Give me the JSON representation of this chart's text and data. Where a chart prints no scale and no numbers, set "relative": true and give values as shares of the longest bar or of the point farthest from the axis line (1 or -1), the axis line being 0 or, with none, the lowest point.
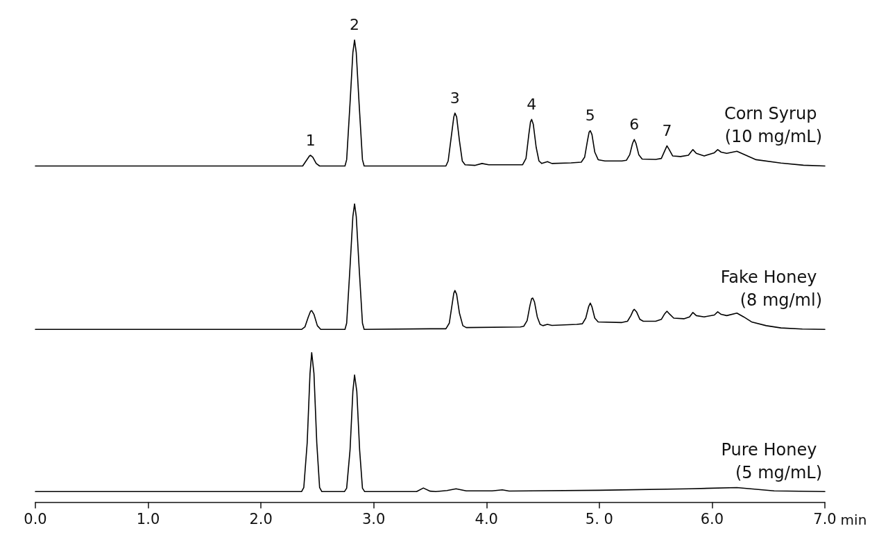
{
  "chart_data": [
    {
      "type": "line",
      "relative": true,
      "x": [
        0,
        2.3,
        2.37,
        2.4,
        2.43,
        2.44,
        2.46,
        2.49,
        2.52,
        2.745,
        2.76,
        2.79,
        2.815,
        2.83,
        2.845,
        2.87,
        2.9,
        2.915,
        3.5,
        3.64,
        3.66,
        3.69,
        3.71,
        3.72,
        3.735,
        3.76,
        3.785,
        3.81,
        3.9,
        3.96,
        4.02,
        4.32,
        4.35,
        4.375,
        4.39,
        4.4,
        4.415,
        4.44,
        4.465,
        4.49,
        4.54,
        4.58,
        4.75,
        4.84,
        4.87,
        4.895,
        4.91,
        4.92,
        4.935,
        4.96,
        4.99,
        5.05,
        5.2,
        5.24,
        5.27,
        5.295,
        5.31,
        5.325,
        5.35,
        5.38,
        5.5,
        5.55,
        5.58,
        5.6,
        5.62,
        5.65,
        5.72,
        5.79,
        5.82,
        5.83,
        5.86,
        5.93,
        6.02,
        6.05,
        6.08,
        6.13,
        6.22,
        6.3,
        6.39,
        6.61,
        6.81,
        7.0
      ],
      "series": [
        {
          "name": "Corn Syrup (10 mg/mL)",
          "color": "#000000",
          "values": [
            0,
            0,
            0,
            0.04,
            0.08,
            0.085,
            0.07,
            0.02,
            0,
            0,
            0.05,
            0.5,
            0.9,
            1,
            0.9,
            0.5,
            0.05,
            0,
            0,
            0,
            0.04,
            0.25,
            0.39,
            0.42,
            0.39,
            0.2,
            0.04,
            0.01,
            0.005,
            0.02,
            0.01,
            0.01,
            0.06,
            0.25,
            0.35,
            0.37,
            0.33,
            0.15,
            0.04,
            0.02,
            0.035,
            0.02,
            0.025,
            0.03,
            0.07,
            0.2,
            0.27,
            0.28,
            0.25,
            0.11,
            0.05,
            0.04,
            0.04,
            0.045,
            0.09,
            0.18,
            0.21,
            0.18,
            0.09,
            0.055,
            0.052,
            0.06,
            0.12,
            0.16,
            0.13,
            0.08,
            0.075,
            0.085,
            0.12,
            0.13,
            0.1,
            0.08,
            0.105,
            0.13,
            0.11,
            0.1,
            0.117,
            0.085,
            0.05,
            0.023,
            0.006,
            0
          ]
        }
      ],
      "xlim": [
        0,
        7
      ],
      "tick_labels": false,
      "annotations": [
        {
          "text": "1",
          "x": 2.44,
          "y": 0.085
        },
        {
          "text": "2",
          "x": 2.83,
          "y": 1
        },
        {
          "text": "3",
          "x": 3.72,
          "y": 0.42
        },
        {
          "text": "4",
          "x": 4.4,
          "y": 0.37
        },
        {
          "text": "5",
          "x": 4.92,
          "y": 0.28
        },
        {
          "text": "6",
          "x": 5.31,
          "y": 0.21
        },
        {
          "text": "7",
          "x": 5.6,
          "y": 0.16
        }
      ]
    },
    {
      "type": "line",
      "relative": true,
      "x": [
        0,
        2.36,
        2.39,
        2.42,
        2.44,
        2.45,
        2.47,
        2.5,
        2.53,
        2.745,
        2.76,
        2.79,
        2.815,
        2.83,
        2.845,
        2.87,
        2.9,
        2.915,
        3.5,
        3.64,
        3.67,
        3.695,
        3.71,
        3.72,
        3.735,
        3.76,
        3.79,
        3.82,
        4.3,
        4.33,
        4.36,
        4.385,
        4.4,
        4.41,
        4.425,
        4.45,
        4.475,
        4.5,
        4.54,
        4.58,
        4.8,
        4.85,
        4.88,
        4.905,
        4.92,
        4.935,
        4.96,
        4.99,
        5.2,
        5.25,
        5.28,
        5.3,
        5.31,
        5.33,
        5.36,
        5.39,
        5.5,
        5.55,
        5.58,
        5.6,
        5.62,
        5.66,
        5.75,
        5.8,
        5.83,
        5.86,
        5.93,
        6.02,
        6.05,
        6.08,
        6.13,
        6.22,
        6.28,
        6.35,
        6.48,
        6.61,
        6.8,
        7.0
      ],
      "series": [
        {
          "name": "Fake Honey (8 mg/ml)",
          "color": "#000000",
          "values": [
            0,
            0,
            0.02,
            0.1,
            0.145,
            0.15,
            0.12,
            0.03,
            0,
            0,
            0.05,
            0.5,
            0.9,
            1,
            0.9,
            0.5,
            0.05,
            0,
            0.005,
            0.005,
            0.05,
            0.2,
            0.29,
            0.31,
            0.28,
            0.13,
            0.03,
            0.015,
            0.02,
            0.025,
            0.07,
            0.19,
            0.245,
            0.25,
            0.22,
            0.1,
            0.04,
            0.03,
            0.04,
            0.032,
            0.04,
            0.045,
            0.09,
            0.18,
            0.21,
            0.18,
            0.09,
            0.06,
            0.055,
            0.065,
            0.11,
            0.15,
            0.16,
            0.14,
            0.08,
            0.065,
            0.065,
            0.08,
            0.125,
            0.145,
            0.125,
            0.09,
            0.085,
            0.1,
            0.135,
            0.11,
            0.1,
            0.115,
            0.14,
            0.12,
            0.11,
            0.13,
            0.1,
            0.06,
            0.03,
            0.012,
            0.003,
            0
          ]
        }
      ],
      "xlim": [
        0,
        7
      ],
      "tick_labels": false
    },
    {
      "type": "line",
      "relative": true,
      "x": [
        0,
        2.36,
        2.38,
        2.41,
        2.435,
        2.45,
        2.47,
        2.495,
        2.52,
        2.54,
        2.74,
        2.76,
        2.79,
        2.815,
        2.83,
        2.85,
        2.875,
        2.9,
        2.92,
        3.38,
        3.44,
        3.5,
        3.55,
        3.65,
        3.73,
        3.82,
        4.05,
        4.14,
        4.2,
        5.0,
        5.8,
        6.22,
        6.55,
        7.0
      ],
      "series": [
        {
          "name": "Pure Honey (5 mg/mL)",
          "color": "#000000",
          "values": [
            0.07,
            0.07,
            0.098,
            0.396,
            0.861,
            1,
            0.861,
            0.396,
            0.098,
            0.07,
            0.07,
            0.093,
            0.349,
            0.74,
            0.851,
            0.74,
            0.349,
            0.093,
            0.07,
            0.07,
            0.094,
            0.073,
            0.07,
            0.077,
            0.089,
            0.075,
            0.075,
            0.082,
            0.074,
            0.079,
            0.089,
            0.097,
            0.075,
            0.07
          ]
        }
      ],
      "xlim": [
        0,
        7
      ],
      "xticks": [
        {
          "value": 0,
          "label": "0.0"
        },
        {
          "value": 1,
          "label": "1.0"
        },
        {
          "value": 2,
          "label": "2.0"
        },
        {
          "value": 3,
          "label": "3.0"
        },
        {
          "value": 4,
          "label": "4.0"
        },
        {
          "value": 5,
          "label": "5. 0"
        },
        {
          "value": 6,
          "label": "6.0"
        },
        {
          "value": 7,
          "label": "7.0"
        }
      ],
      "xlabel": "min",
      "tick_labels": "x"
    }
  ]
}
